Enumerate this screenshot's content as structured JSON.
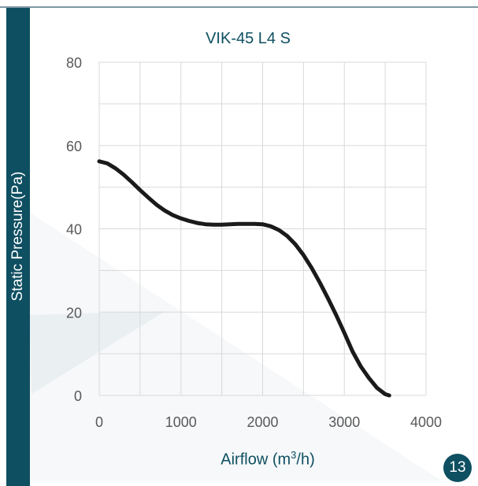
{
  "page": {
    "number": "13"
  },
  "colors": {
    "accent": "#0e4f61",
    "curve": "#1a1a1a",
    "grid": "#d9d9d9"
  },
  "chart_data": {
    "type": "line",
    "title": "VIK-45 L4 S",
    "xlabel_text": "Airflow (m",
    "xlabel_sup": "3",
    "xlabel_end": "/h)",
    "ylabel": "Static Pressure(Pa)",
    "xlim": [
      0,
      4000
    ],
    "ylim": [
      0,
      80
    ],
    "xticks": [
      0,
      1000,
      2000,
      3000,
      4000
    ],
    "yticks": [
      0,
      20,
      40,
      60,
      80
    ],
    "grid": true,
    "series": [
      {
        "x": [
          0,
          100,
          200,
          300,
          400,
          500,
          600,
          700,
          800,
          900,
          1000,
          1100,
          1200,
          1300,
          1400,
          1500,
          1600,
          1700,
          1800,
          1900,
          2000,
          2100,
          2200,
          2300,
          2400,
          2500,
          2600,
          2700,
          2800,
          2900,
          3000,
          3100,
          3200,
          3300,
          3400,
          3500,
          3550
        ],
        "values": [
          56.2,
          55.7,
          54.5,
          53,
          51.2,
          49.3,
          47.5,
          45.8,
          44.4,
          43.3,
          42.5,
          41.9,
          41.4,
          41.1,
          41.0,
          41.0,
          41.1,
          41.2,
          41.2,
          41.2,
          41.1,
          40.6,
          39.7,
          38.3,
          36.3,
          33.7,
          30.6,
          27.1,
          23.3,
          19.3,
          15,
          10.6,
          7,
          4.2,
          1.8,
          0.3,
          0
        ]
      }
    ]
  }
}
